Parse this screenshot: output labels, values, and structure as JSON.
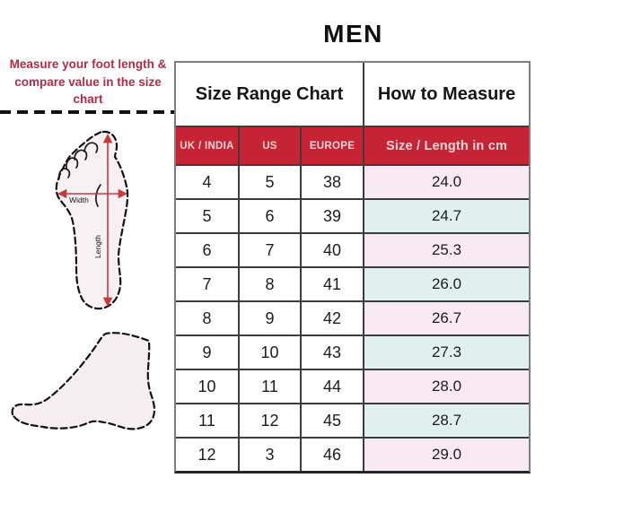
{
  "title": "MEN",
  "annotation": {
    "text": "Measure your foot length & compare value in the size chart",
    "width_label": "Width",
    "length_label": "Length"
  },
  "table": {
    "group_headers": [
      "Size Range Chart",
      "How to Measure"
    ],
    "columns": [
      "UK / INDIA",
      "US",
      "EUROPE",
      "Size / Length in cm"
    ],
    "column_keys": [
      "uk-india",
      "us",
      "europe",
      "size-length-cm"
    ],
    "rows": [
      [
        "4",
        "5",
        "38",
        "24.0"
      ],
      [
        "5",
        "6",
        "39",
        "24.7"
      ],
      [
        "6",
        "7",
        "40",
        "25.3"
      ],
      [
        "7",
        "8",
        "41",
        "26.0"
      ],
      [
        "8",
        "9",
        "42",
        "26.7"
      ],
      [
        "9",
        "10",
        "43",
        "27.3"
      ],
      [
        "10",
        "11",
        "44",
        "28.0"
      ],
      [
        "11",
        "12",
        "45",
        "28.7"
      ],
      [
        "12",
        "3",
        "46",
        "29.0"
      ]
    ]
  },
  "colors": {
    "header_red": "#c62334",
    "row_pink": "#f9e9f2",
    "row_blue": "#e0f0ef",
    "annotation_red": "#b52b43",
    "arrow_red": "#c23b3f"
  }
}
